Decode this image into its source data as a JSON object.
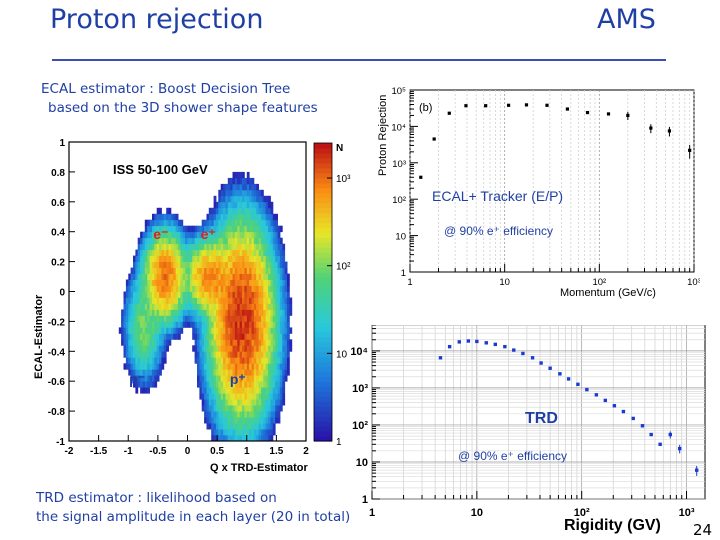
{
  "slide": {
    "title": "Proton rejection",
    "title_right": "AMS",
    "ecal_description": [
      "ECAL estimator :  Boost Decision Tree",
      "based on  the 3D shower shape  features"
    ],
    "trd_description": [
      "TRD estimator : likelihood based on",
      "the signal amplitude in each layer (20 in total)"
    ],
    "page_number": "24",
    "accent_color": "#1f3fa5"
  },
  "chart_data": [
    {
      "type": "heatmap",
      "title": "ISS 50-100 GeV",
      "xlabel": "Q x TRD-Estimator",
      "ylabel": "ECAL-Estimator",
      "xlim": [
        -2,
        2
      ],
      "ylim": [
        -1,
        1
      ],
      "x_ticks": [
        "-2",
        "-1.5",
        "-1",
        "-0.5",
        "0",
        "0.5",
        "1",
        "1.5",
        "2"
      ],
      "y_ticks": [
        "-1",
        "-0.8",
        "-0.6",
        "-0.4",
        "-0.2",
        "0",
        "0.2",
        "0.4",
        "0.6",
        "0.8",
        "1"
      ],
      "colorbar": {
        "label": "N",
        "scale": "log",
        "ticks": [
          "1",
          "10",
          "10²",
          "10³"
        ]
      },
      "annotations": [
        {
          "text": "e⁻",
          "x": -0.45,
          "y": 0.35,
          "color": "#e02020"
        },
        {
          "text": "e⁺",
          "x": 0.35,
          "y": 0.35,
          "color": "#e02020"
        },
        {
          "text": "p⁻",
          "x": -0.85,
          "y": -0.62,
          "color": "#1f3fa5"
        },
        {
          "text": "p⁺",
          "x": 0.85,
          "y": -0.62,
          "color": "#1f3fa5"
        }
      ],
      "clusters": [
        {
          "name": "e⁻",
          "cx": -0.4,
          "cy": 0.08,
          "sx": 0.22,
          "sy": 0.18,
          "peak": 1000
        },
        {
          "name": "p⁻",
          "cx": -0.75,
          "cy": -0.25,
          "sx": 0.2,
          "sy": 0.22,
          "peak": 100
        },
        {
          "name": "e⁺",
          "cx": 0.35,
          "cy": 0.08,
          "sx": 0.25,
          "sy": 0.15,
          "peak": 800
        },
        {
          "name": "p⁺",
          "cx": 0.9,
          "cy": -0.22,
          "sx": 0.32,
          "sy": 0.38,
          "peak": 2000
        }
      ]
    },
    {
      "type": "scatter",
      "label": "(b)",
      "xlabel": "Momentum (GeV/c)",
      "ylabel": "Proton Rejection",
      "x_scale": "log",
      "y_scale": "log",
      "xlim": [
        1,
        1000
      ],
      "ylim": [
        1,
        100000
      ],
      "x_ticks": [
        "1",
        "10",
        "10²",
        "10³"
      ],
      "y_ticks": [
        "1",
        "10",
        "10²",
        "10³",
        "10⁴",
        "10⁵"
      ],
      "annotation_main": "ECAL+ Tracker (E/P)",
      "annotation_eff": "@ 90% e⁺ efficiency",
      "x": [
        1.3,
        1.8,
        2.6,
        3.9,
        6.3,
        11,
        17,
        28,
        46,
        75,
        125,
        200,
        350,
        550,
        900
      ],
      "y": [
        400,
        4500,
        23000,
        37000,
        37000,
        38000,
        39000,
        38000,
        30000,
        24000,
        22000,
        20000,
        9000,
        7500,
        2200
      ],
      "yerr_lo": [
        0,
        0,
        0,
        0,
        0,
        0,
        0,
        0,
        0,
        0,
        0,
        5000,
        2500,
        2200,
        900
      ],
      "yerr_hi": [
        0,
        0,
        0,
        0,
        0,
        0,
        0,
        0,
        0,
        0,
        0,
        5000,
        2500,
        2200,
        900
      ]
    },
    {
      "type": "scatter",
      "title": "TRD",
      "xlabel": "Rigidity (GV)",
      "ylabel": "",
      "x_scale": "log",
      "y_scale": "log",
      "xlim": [
        1,
        1500
      ],
      "ylim": [
        1,
        50000
      ],
      "x_ticks": [
        "1",
        "10",
        "10²",
        "10³"
      ],
      "y_ticks": [
        "1",
        "10",
        "10²",
        "10³",
        "10⁴"
      ],
      "annotation_eff": "@ 90% e⁺ efficiency",
      "x": [
        4.5,
        5.5,
        6.8,
        8.3,
        10,
        12.3,
        15,
        18.5,
        22.5,
        27.5,
        34,
        41,
        50,
        62,
        75,
        92,
        112,
        138,
        168,
        205,
        250,
        310,
        380,
        460,
        560,
        700,
        860,
        1250
      ],
      "y": [
        6500,
        13000,
        17500,
        18500,
        18000,
        16500,
        15000,
        13000,
        10500,
        8500,
        6500,
        4700,
        3400,
        2400,
        1750,
        1250,
        900,
        650,
        460,
        330,
        230,
        150,
        95,
        55,
        30,
        55,
        23,
        6
      ],
      "yerr": [
        0,
        0,
        0,
        0,
        0,
        0,
        0,
        0,
        0,
        0,
        0,
        0,
        0,
        0,
        0,
        0,
        0,
        0,
        0,
        0,
        0,
        0,
        0,
        0,
        0,
        12,
        6,
        1.8
      ]
    }
  ]
}
